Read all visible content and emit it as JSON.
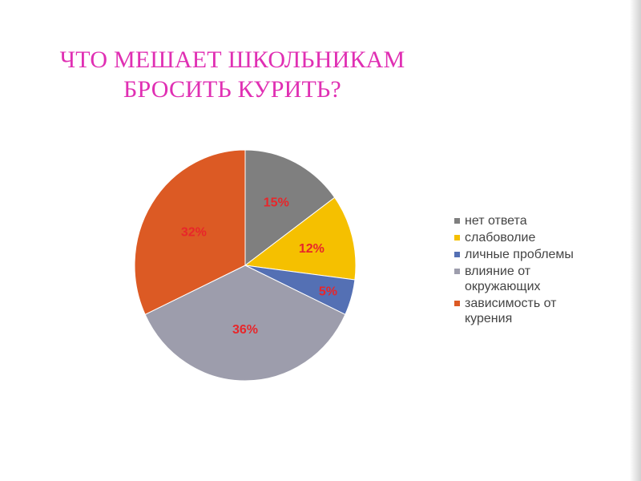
{
  "title": {
    "line1": "ЧТО МЕШАЕТ ШКОЛЬНИКАМ",
    "line2": "БРОСИТЬ КУРИТЬ?"
  },
  "colors": {
    "title": "#e02fb3",
    "data_label": "#e8262a"
  },
  "chart_data": {
    "type": "pie",
    "start_angle": "12 o'clock",
    "direction": "clockwise",
    "legend_position": "right",
    "slices": [
      {
        "label": "нет ответа",
        "legend": "нет ответа",
        "value": 15,
        "display": "15%",
        "color": "#7f7f7f"
      },
      {
        "label": "слабоволие",
        "legend": "слабоволие",
        "value": 12,
        "display": "12%",
        "color": "#f5c000"
      },
      {
        "label": "личные проблемы",
        "legend": "личные проблемы",
        "value": 5,
        "display": "5%",
        "color": "#5470b4"
      },
      {
        "label": "влияние от окружающих",
        "legend": "влияние от\nокружающих",
        "value": 36,
        "display": "36%",
        "color": "#9d9dac"
      },
      {
        "label": "зависимость от курения",
        "legend": "зависимость от\nкурения",
        "value": 32,
        "display": "32%",
        "color": "#dc5a24"
      }
    ]
  }
}
